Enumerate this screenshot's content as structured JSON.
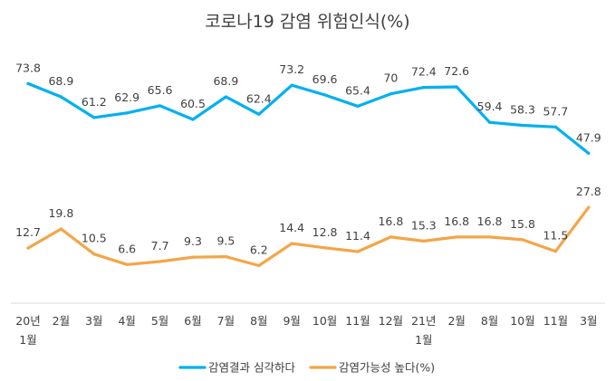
{
  "chart_data": {
    "type": "line",
    "title": "코로나19 감염 위험인식(%)",
    "categories": [
      [
        "20년",
        "1월"
      ],
      [
        "2월"
      ],
      [
        "3월"
      ],
      [
        "4월"
      ],
      [
        "5월"
      ],
      [
        "6월"
      ],
      [
        "7월"
      ],
      [
        "8월"
      ],
      [
        "9월"
      ],
      [
        "10월"
      ],
      [
        "11월"
      ],
      [
        "12월"
      ],
      [
        "21년",
        "1월"
      ],
      [
        "2월"
      ],
      [
        "8월"
      ],
      [
        "10월"
      ],
      [
        "11월"
      ],
      [
        "3월"
      ]
    ],
    "series": [
      {
        "name": "감염결과 심각하다",
        "color": "#00b0f0",
        "values": [
          73.8,
          68.9,
          61.2,
          62.9,
          65.6,
          60.5,
          68.9,
          62.4,
          73.2,
          69.6,
          65.4,
          70,
          72.4,
          72.6,
          59.4,
          58.3,
          57.7,
          47.9
        ]
      },
      {
        "name": "감염가능성 높다(%)",
        "color": "#f4a547",
        "values": [
          12.7,
          19.8,
          10.5,
          6.6,
          7.7,
          9.3,
          9.5,
          6.2,
          14.4,
          12.8,
          11.4,
          16.8,
          15.3,
          16.8,
          16.8,
          15.8,
          11.5,
          27.8
        ]
      }
    ],
    "xlabel": "",
    "ylabel": "",
    "grid": false,
    "legend": "bottom-center"
  }
}
